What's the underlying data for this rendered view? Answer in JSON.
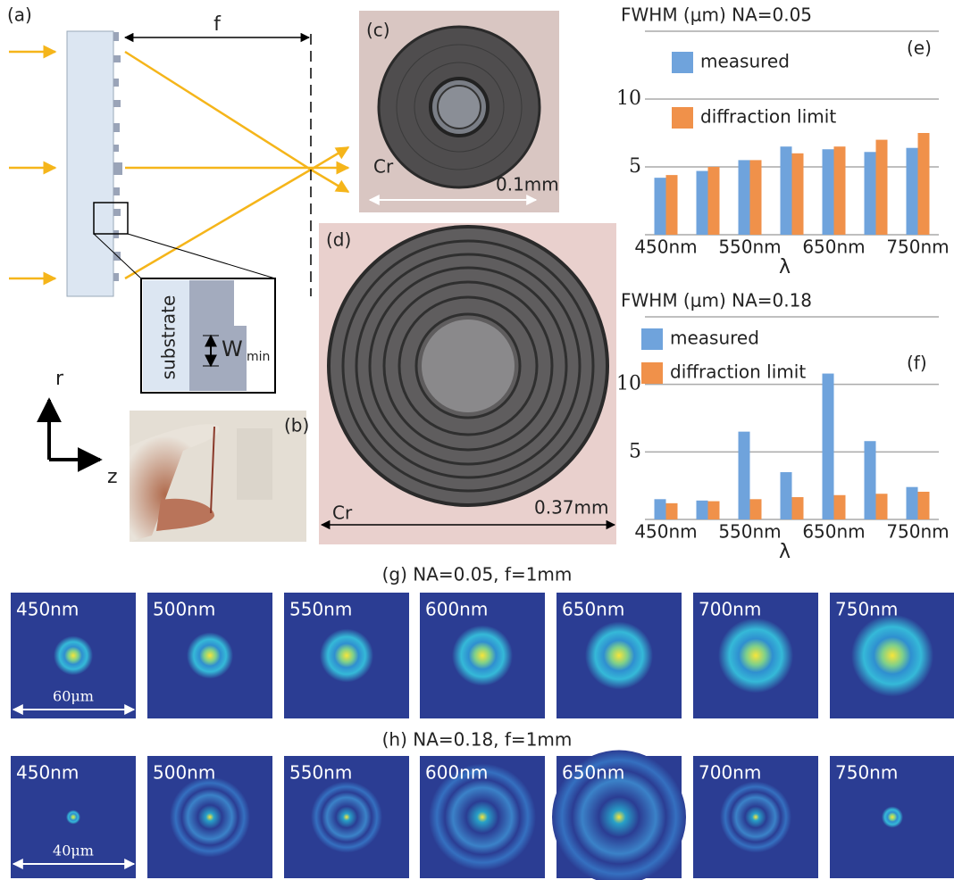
{
  "panels": {
    "a": "(a)",
    "b": "(b)",
    "c": "(c)",
    "d": "(d)"
  },
  "diagram": {
    "focal": "f",
    "substrate": "substrate",
    "w": "W",
    "w_sub": "min",
    "r": "r",
    "z": "z"
  },
  "micrographs": {
    "c_material": "Cr",
    "c_scale": "0.1mm",
    "d_material": "Cr",
    "d_scale": "0.37mm"
  },
  "chart_data": [
    {
      "type": "bar",
      "title": "FWHM (μm) NA=0.05",
      "panel": "(e)",
      "x_label": "λ",
      "categories": [
        "450nm",
        null,
        "550nm",
        null,
        "650nm",
        null,
        "750nm"
      ],
      "series": [
        {
          "name": "measured",
          "color": "#6fa3dc",
          "values": [
            4.2,
            4.7,
            5.5,
            6.5,
            6.3,
            6.1,
            6.4
          ]
        },
        {
          "name": "diffraction limit",
          "color": "#f0914a",
          "values": [
            4.4,
            5.0,
            5.5,
            6.0,
            6.5,
            7.0,
            7.5
          ]
        }
      ],
      "ylim": [
        0,
        15
      ],
      "yticks": [
        5,
        10
      ],
      "grid": true
    },
    {
      "type": "bar",
      "title": "FWHM (μm) NA=0.18",
      "panel": "(f)",
      "x_label": "λ",
      "categories": [
        "450nm",
        null,
        "550nm",
        null,
        "650nm",
        null,
        "750nm"
      ],
      "series": [
        {
          "name": "measured",
          "color": "#6fa3dc",
          "values": [
            1.5,
            1.4,
            6.5,
            3.5,
            10.8,
            5.8,
            2.4
          ]
        },
        {
          "name": "diffraction limit",
          "color": "#f0914a",
          "values": [
            1.2,
            1.35,
            1.5,
            1.65,
            1.8,
            1.9,
            2.05
          ]
        }
      ],
      "ylim": [
        0,
        15
      ],
      "yticks": [
        5,
        10
      ],
      "grid": true
    }
  ],
  "rows": [
    {
      "title": "(g) NA=0.05, f=1mm",
      "labels": [
        "450nm",
        "500nm",
        "550nm",
        "600nm",
        "650nm",
        "700nm",
        "750nm"
      ],
      "scale": "60μm"
    },
    {
      "title": "(h) NA=0.18, f=1mm",
      "labels": [
        "450nm",
        "500nm",
        "550nm",
        "600nm",
        "650nm",
        "700nm",
        "750nm"
      ],
      "scale": "40μm"
    }
  ]
}
